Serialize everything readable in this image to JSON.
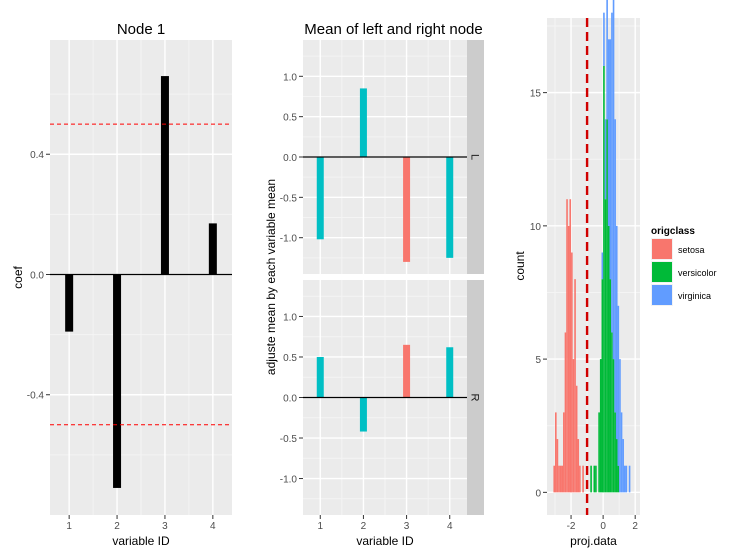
{
  "colors": {
    "panel_bg": "#ebebeb",
    "grid_major": "#ffffff",
    "grid_minor": "#f4f4f4",
    "strip_bg": "#cccccc",
    "tick_text": "#4d4d4d",
    "black": "#000000",
    "ref_line": "#ff0000",
    "setosa": "#f8766d",
    "versicolor": "#00ba38",
    "virginica": "#619cff",
    "teal": "#00bfc4"
  },
  "chart_data": [
    {
      "id": "node1",
      "type": "bar",
      "title": "Node 1",
      "xlabel": "variable ID",
      "ylabel": "coef",
      "categories": [
        "1",
        "2",
        "3",
        "4"
      ],
      "values": [
        -0.19,
        -0.71,
        0.66,
        0.17
      ],
      "ylim": [
        -0.8,
        0.78
      ],
      "yticks": [
        -0.4,
        0.0,
        0.4
      ],
      "ytick_labels": [
        "-0.4",
        "0.0",
        "0.4"
      ],
      "hlines": [
        0.5,
        -0.5
      ],
      "bar_color": "#000000",
      "grid": true
    },
    {
      "id": "mean",
      "type": "bar",
      "title": "Mean of left and right node",
      "xlabel": "variable ID",
      "ylabel": "adjuste mean by each variable mean",
      "categories": [
        "1",
        "2",
        "3",
        "4"
      ],
      "ylim": [
        -1.45,
        1.45
      ],
      "yticks": [
        -1.0,
        -0.5,
        0.0,
        0.5,
        1.0
      ],
      "ytick_labels": [
        "-1.0",
        "-0.5",
        "0.0",
        "0.5",
        "1.0"
      ],
      "grid": true,
      "facets": [
        {
          "strip": "L",
          "values": [
            -1.02,
            0.85,
            -1.3,
            -1.25
          ],
          "colors": [
            "#00bfc4",
            "#00bfc4",
            "#f8766d",
            "#00bfc4"
          ]
        },
        {
          "strip": "R",
          "values": [
            0.5,
            -0.42,
            0.65,
            0.62
          ],
          "colors": [
            "#00bfc4",
            "#00bfc4",
            "#f8766d",
            "#00bfc4"
          ]
        }
      ]
    },
    {
      "id": "hist",
      "type": "histogram",
      "xlabel": "proj.data",
      "ylabel": "count",
      "xlim": [
        -3.5,
        2.3
      ],
      "ylim": [
        -0.85,
        17.8
      ],
      "xticks": [
        -2,
        0,
        2
      ],
      "xtick_labels": [
        "-2",
        "0",
        "2"
      ],
      "yticks": [
        0,
        5,
        10,
        15
      ],
      "ytick_labels": [
        "0",
        "5",
        "10",
        "15"
      ],
      "bin_width": 0.1,
      "vline": -1.0,
      "legend": {
        "title": "origclass",
        "entries": [
          "setosa",
          "versicolor",
          "virginica"
        ],
        "position": "right"
      },
      "series": [
        {
          "name": "setosa",
          "start": -3.1,
          "counts": [
            1,
            3,
            2,
            1,
            1,
            1,
            3,
            6,
            11,
            10,
            11,
            9,
            5,
            8,
            4,
            2,
            1,
            0,
            1
          ]
        },
        {
          "name": "versicolor",
          "start": -0.8,
          "counts": [
            1,
            0,
            1,
            1,
            0,
            3,
            5,
            8,
            16,
            11,
            14,
            10,
            8,
            6,
            5,
            3,
            2,
            1
          ]
        },
        {
          "name": "virginica",
          "start": -0.1,
          "counts": [
            1,
            2,
            3,
            5,
            7,
            9,
            12,
            17,
            11,
            8,
            6,
            5,
            3,
            2,
            1,
            1,
            0,
            1
          ]
        }
      ]
    }
  ]
}
